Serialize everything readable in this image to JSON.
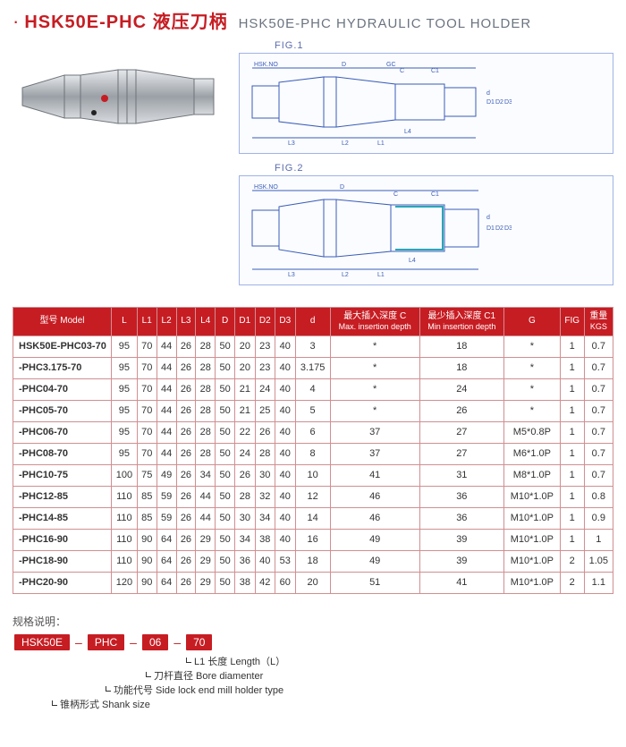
{
  "header": {
    "code": "HSK50E-PHC",
    "title_cn": "液压刀柄",
    "title_en": "HSK50E-PHC HYDRAULIC TOOL HOLDER"
  },
  "figures": {
    "fig1_label": "FIG.1",
    "fig2_label": "FIG.2",
    "callouts": [
      "HSK.NO",
      "D",
      "GC",
      "C",
      "C1",
      "d",
      "D1",
      "D2",
      "D3",
      "L3",
      "L2",
      "L4",
      "L1",
      "L"
    ],
    "diagram_stroke": "#3a5db8",
    "diagram_fill": "#cfd7e8"
  },
  "table": {
    "header_bg": "#c61d23",
    "header_fg": "#ffffff",
    "border_color": "#d08f92",
    "columns": [
      {
        "label": "型号 Model",
        "width": "110"
      },
      {
        "label": "L"
      },
      {
        "label": "L1"
      },
      {
        "label": "L2"
      },
      {
        "label": "L3"
      },
      {
        "label": "L4"
      },
      {
        "label": "D"
      },
      {
        "label": "D1"
      },
      {
        "label": "D2"
      },
      {
        "label": "D3"
      },
      {
        "label": "d"
      },
      {
        "label": "最大插入深度 C",
        "sub": "Max. insertion depth"
      },
      {
        "label": "最少插入深度 C1",
        "sub": "Min insertion depth"
      },
      {
        "label": "G"
      },
      {
        "label": "FIG"
      },
      {
        "label": "重量",
        "sub": "KGS"
      }
    ],
    "rows": [
      [
        "HSK50E-PHC03-70",
        "95",
        "70",
        "44",
        "26",
        "28",
        "50",
        "20",
        "23",
        "40",
        "3",
        "*",
        "18",
        "*",
        "1",
        "0.7"
      ],
      [
        "-PHC3.175-70",
        "95",
        "70",
        "44",
        "26",
        "28",
        "50",
        "20",
        "23",
        "40",
        "3.175",
        "*",
        "18",
        "*",
        "1",
        "0.7"
      ],
      [
        "-PHC04-70",
        "95",
        "70",
        "44",
        "26",
        "28",
        "50",
        "21",
        "24",
        "40",
        "4",
        "*",
        "24",
        "*",
        "1",
        "0.7"
      ],
      [
        "-PHC05-70",
        "95",
        "70",
        "44",
        "26",
        "28",
        "50",
        "21",
        "25",
        "40",
        "5",
        "*",
        "26",
        "*",
        "1",
        "0.7"
      ],
      [
        "-PHC06-70",
        "95",
        "70",
        "44",
        "26",
        "28",
        "50",
        "22",
        "26",
        "40",
        "6",
        "37",
        "27",
        "M5*0.8P",
        "1",
        "0.7"
      ],
      [
        "-PHC08-70",
        "95",
        "70",
        "44",
        "26",
        "28",
        "50",
        "24",
        "28",
        "40",
        "8",
        "37",
        "27",
        "M6*1.0P",
        "1",
        "0.7"
      ],
      [
        "-PHC10-75",
        "100",
        "75",
        "49",
        "26",
        "34",
        "50",
        "26",
        "30",
        "40",
        "10",
        "41",
        "31",
        "M8*1.0P",
        "1",
        "0.7"
      ],
      [
        "-PHC12-85",
        "110",
        "85",
        "59",
        "26",
        "44",
        "50",
        "28",
        "32",
        "40",
        "12",
        "46",
        "36",
        "M10*1.0P",
        "1",
        "0.8"
      ],
      [
        "-PHC14-85",
        "110",
        "85",
        "59",
        "26",
        "44",
        "50",
        "30",
        "34",
        "40",
        "14",
        "46",
        "36",
        "M10*1.0P",
        "1",
        "0.9"
      ],
      [
        "-PHC16-90",
        "110",
        "90",
        "64",
        "26",
        "29",
        "50",
        "34",
        "38",
        "40",
        "16",
        "49",
        "39",
        "M10*1.0P",
        "1",
        "1"
      ],
      [
        "-PHC18-90",
        "110",
        "90",
        "64",
        "26",
        "29",
        "50",
        "36",
        "40",
        "53",
        "18",
        "49",
        "39",
        "M10*1.0P",
        "2",
        "1.05"
      ],
      [
        "-PHC20-90",
        "120",
        "90",
        "64",
        "26",
        "29",
        "50",
        "38",
        "42",
        "60",
        "20",
        "51",
        "41",
        "M10*1.0P",
        "2",
        "1.1"
      ]
    ]
  },
  "legend": {
    "title": "规格说明：",
    "boxes": [
      "HSK50E",
      "PHC",
      "06",
      "70"
    ],
    "lines": [
      "L1 长度  Length（L）",
      "刀杆直径  Bore diamenter",
      "功能代号  Side lock end mill holder type",
      "锥柄形式  Shank size"
    ]
  }
}
